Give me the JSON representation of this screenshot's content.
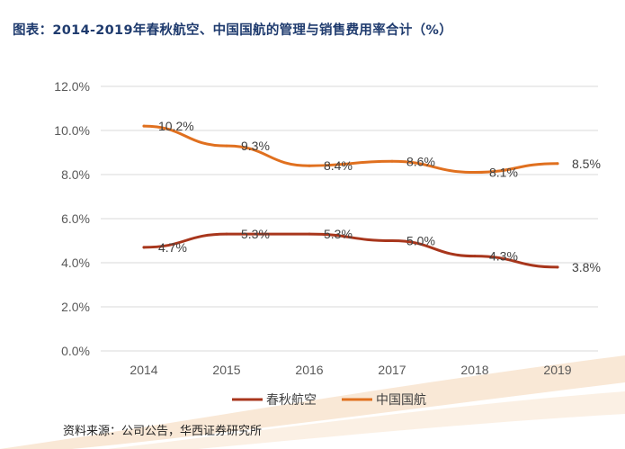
{
  "title": "图表：2014-2019年春秋航空、中国国航的管理与销售费用率合计（%）",
  "source": "资料来源：公司公告，华西证券研究所",
  "colors": {
    "title": "#1f3b6e",
    "series_spring": "#a8361c",
    "series_airchina": "#e0701f",
    "grid": "#d9d9d9",
    "axis_text": "#595959",
    "deco": "#f5dcc0"
  },
  "chart_data": {
    "type": "line",
    "title": "2014-2019年春秋航空、中国国航的管理与销售费用率合计（%）",
    "categories": [
      "2014",
      "2015",
      "2016",
      "2017",
      "2018",
      "2019"
    ],
    "ylim": [
      0,
      12
    ],
    "yticks": [
      "0.0%",
      "2.0%",
      "4.0%",
      "6.0%",
      "8.0%",
      "10.0%",
      "12.0%"
    ],
    "grid": true,
    "legend_position": "bottom",
    "series": [
      {
        "name": "春秋航空",
        "color_key": "series_spring",
        "values": [
          4.7,
          5.3,
          5.3,
          5.0,
          4.3,
          3.8
        ],
        "labels": [
          "4.7%",
          "5.3%",
          "5.3%",
          "5.0%",
          "4.3%",
          "3.8%"
        ]
      },
      {
        "name": "中国国航",
        "color_key": "series_airchina",
        "values": [
          10.2,
          9.3,
          8.4,
          8.6,
          8.1,
          8.5
        ],
        "labels": [
          "10.2%",
          "9.3%",
          "8.4%",
          "8.6%",
          "8.1%",
          "8.5%"
        ]
      }
    ]
  }
}
